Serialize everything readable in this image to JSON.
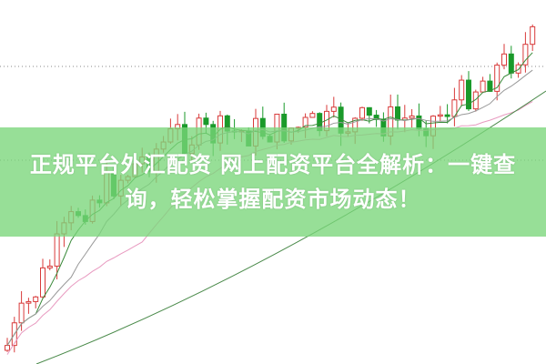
{
  "headline": "正规平台外汇配资 网上配资平台全解析：一键查询，轻松掌握配资市场动态！",
  "colors": {
    "up": "#d83a3a",
    "down": "#1a9a2a",
    "banner": "#7ad67a",
    "ma_short": "#3a8a3a",
    "ma_mid": "#999999",
    "ma_long": "#e89ac0",
    "ma_longest": "#4a8a4a"
  },
  "chart_type": "candlestick"
}
